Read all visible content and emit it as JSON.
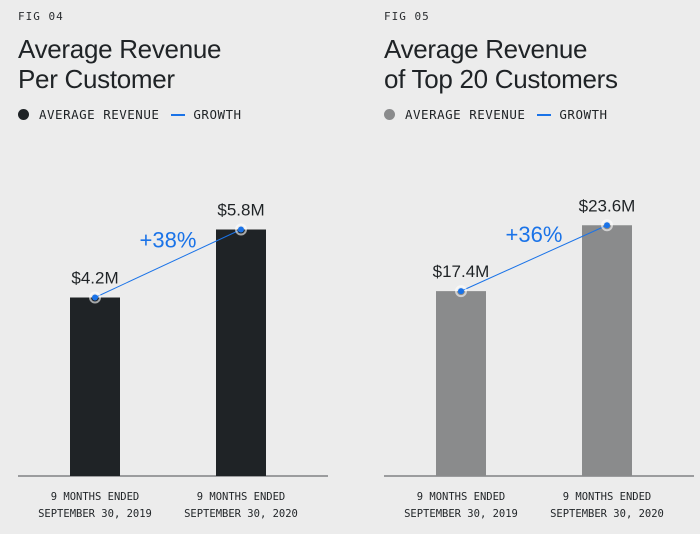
{
  "colors": {
    "background": "#ececec",
    "dark_bar": "#1f2326",
    "gray_bar": "#8a8b8c",
    "growth_blue": "#1a73e8",
    "axis": "#4a4d50"
  },
  "chart_data": [
    {
      "type": "bar",
      "fig_label": "FIG 04",
      "title_lines": [
        "Average Revenue",
        "Per Customer"
      ],
      "legend": {
        "series_label": "AVERAGE REVENUE",
        "growth_label": "GROWTH"
      },
      "categories": [
        [
          "9 MONTHS ENDED",
          "SEPTEMBER 30, 2019"
        ],
        [
          "9 MONTHS ENDED",
          "SEPTEMBER 30, 2020"
        ]
      ],
      "values": [
        4.2,
        5.8
      ],
      "value_labels": [
        "$4.2M",
        "$5.8M"
      ],
      "unit": "$M",
      "growth_label": "+38%",
      "bar_color": "#1f2326",
      "ylim": [
        0,
        8
      ]
    },
    {
      "type": "bar",
      "fig_label": "FIG 05",
      "title_lines": [
        "Average Revenue",
        "of Top 20 Customers"
      ],
      "legend": {
        "series_label": "AVERAGE REVENUE",
        "growth_label": "GROWTH"
      },
      "categories": [
        [
          "9 MONTHS ENDED",
          "SEPTEMBER 30, 2019"
        ],
        [
          "9 MONTHS ENDED",
          "SEPTEMBER 30, 2020"
        ]
      ],
      "values": [
        17.4,
        23.6
      ],
      "value_labels": [
        "$17.4M",
        "$23.6M"
      ],
      "unit": "$M",
      "growth_label": "+36%",
      "bar_color": "#8a8b8c",
      "ylim": [
        0,
        32
      ]
    }
  ]
}
